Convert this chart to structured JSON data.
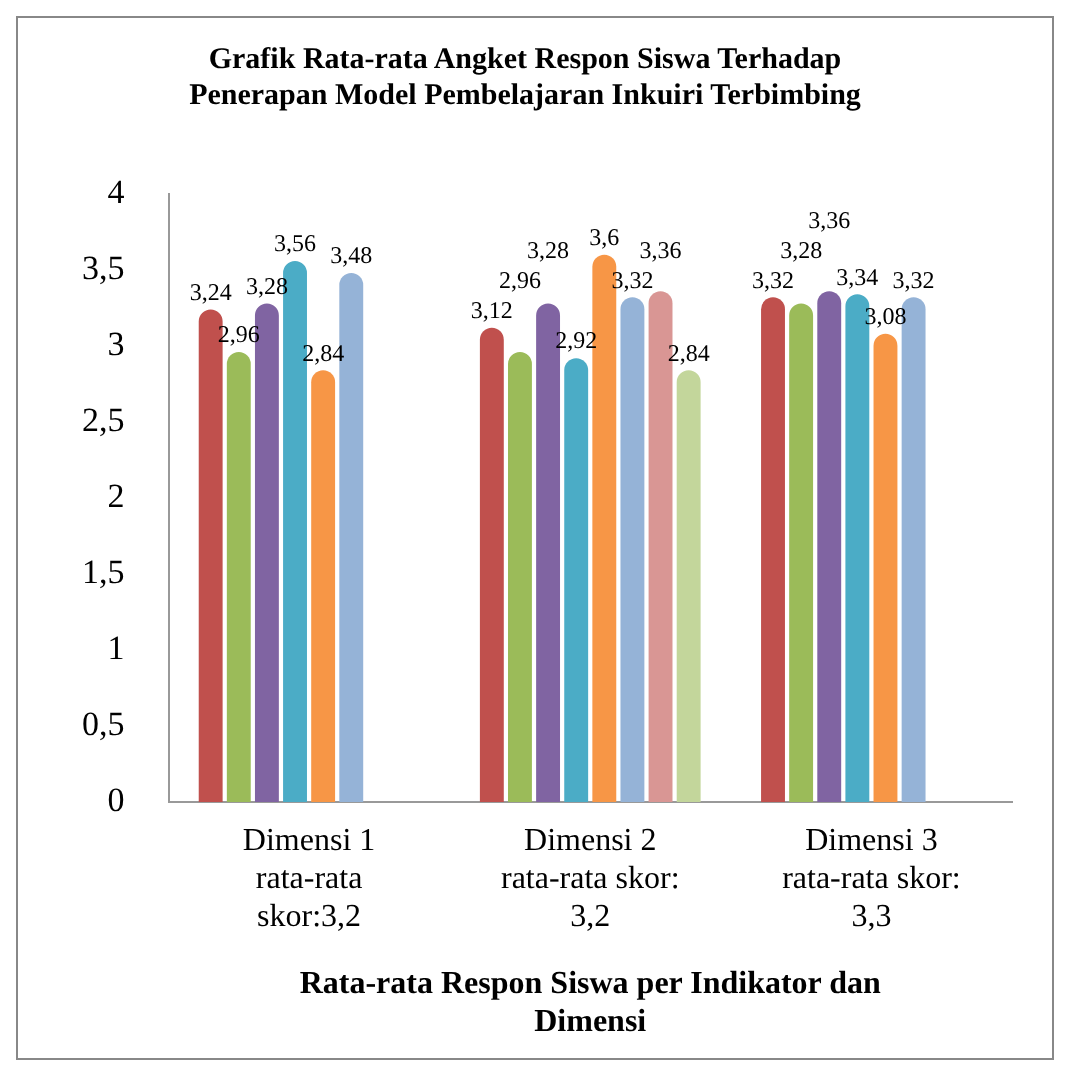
{
  "chart_data": {
    "type": "bar",
    "title": "Grafik Rata-rata Angket Respon Siswa Terhadap Penerapan Model Pembelajaran Inkuiri Terbimbing",
    "xlabel": "Rata-rata Respon Siswa per Indikator dan Dimensi",
    "categories": [
      "Dimensi 1 rata-rata skor:3,2",
      "Dimensi 2 rata-rata skor: 3,2",
      "Dimensi 3 rata-rata skor: 3,3"
    ],
    "series": [
      {
        "color": "#c0504d",
        "values": [
          3.24,
          3.12,
          3.32
        ],
        "value_labels": [
          "3,24",
          "3,12",
          "3,32"
        ]
      },
      {
        "color": "#9bbb59",
        "values": [
          2.96,
          2.96,
          3.28
        ],
        "value_labels": [
          "2,96",
          "2,96",
          "3,28"
        ]
      },
      {
        "color": "#8064a2",
        "values": [
          3.28,
          3.28,
          3.36
        ],
        "value_labels": [
          "3,28",
          "3,28",
          "3,36"
        ]
      },
      {
        "color": "#4bacc6",
        "values": [
          3.56,
          2.92,
          3.34
        ],
        "value_labels": [
          "3,56",
          "2,92",
          "3,34"
        ]
      },
      {
        "color": "#f79646",
        "values": [
          2.84,
          3.6,
          3.08
        ],
        "value_labels": [
          "2,84",
          "3,6",
          "3,08"
        ]
      },
      {
        "color": "#95b3d7",
        "values": [
          3.48,
          3.32,
          3.32
        ],
        "value_labels": [
          "3,48",
          "3,32",
          "3,32"
        ]
      },
      {
        "color": "#d99694",
        "values": [
          null,
          3.36,
          null
        ],
        "value_labels": [
          null,
          "3,36",
          null
        ]
      },
      {
        "color": "#c3d69b",
        "values": [
          null,
          2.84,
          null
        ],
        "value_labels": [
          null,
          "2,84",
          null
        ]
      }
    ],
    "ylim": [
      0,
      4
    ],
    "yticks": [
      0,
      {
        "value": 0.5,
        "label": "0,5"
      },
      1,
      {
        "value": 1.5,
        "label": "1,5"
      },
      2,
      {
        "value": 2.5,
        "label": "2,5"
      },
      3,
      {
        "value": 3.5,
        "label": "3,5"
      },
      4
    ],
    "grid": false,
    "legend": false
  }
}
